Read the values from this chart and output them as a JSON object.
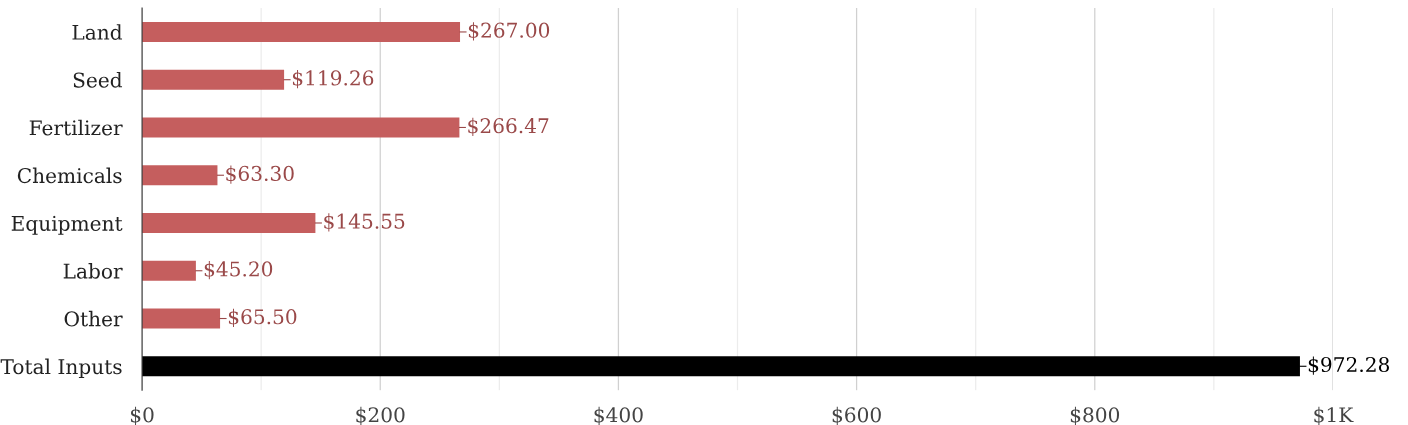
{
  "chart_data": {
    "type": "bar",
    "orientation": "horizontal",
    "categories": [
      "Land",
      "Seed",
      "Fertilizer",
      "Chemicals",
      "Equipment",
      "Labor",
      "Other",
      "Total Inputs"
    ],
    "values": [
      267.0,
      119.26,
      266.47,
      63.3,
      145.55,
      45.2,
      65.5,
      972.28
    ],
    "colors": [
      "#c55e5e",
      "#c55e5e",
      "#c55e5e",
      "#c55e5e",
      "#c55e5e",
      "#c55e5e",
      "#c55e5e",
      "#000000"
    ],
    "value_labels": [
      "$267.00",
      "$119.26",
      "$266.47",
      "$63.30",
      "$145.55",
      "$45.20",
      "$65.50",
      "$972.28"
    ],
    "xlim": [
      0,
      1000
    ],
    "xticks": [
      {
        "value": 0,
        "label": "$0"
      },
      {
        "value": 100,
        "label": null
      },
      {
        "value": 200,
        "label": "$200"
      },
      {
        "value": 300,
        "label": null
      },
      {
        "value": 400,
        "label": "$400"
      },
      {
        "value": 500,
        "label": null
      },
      {
        "value": 600,
        "label": "$600"
      },
      {
        "value": 700,
        "label": null
      },
      {
        "value": 800,
        "label": "$800"
      },
      {
        "value": 900,
        "label": null
      },
      {
        "value": 1000,
        "label": "$1K"
      }
    ],
    "grid": "x"
  }
}
